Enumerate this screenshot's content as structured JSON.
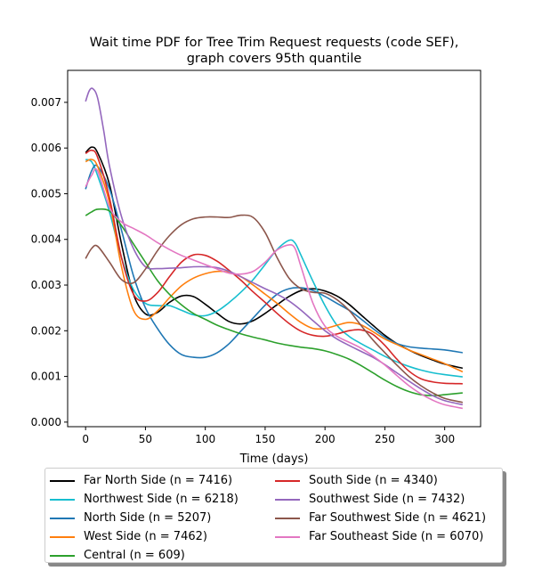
{
  "chart_data": {
    "type": "line",
    "title": "Wait time PDF for Tree Trim Request  requests (code SEF),\ngraph covers 95th quantile",
    "xlabel": "Time (days)",
    "ylabel": "",
    "xlim": [
      -15,
      330
    ],
    "ylim": [
      -0.0001,
      0.0077
    ],
    "xticks": [
      0,
      50,
      100,
      150,
      200,
      250,
      300
    ],
    "yticks": [
      0.0,
      0.001,
      0.002,
      0.003,
      0.004,
      0.005,
      0.006,
      0.007
    ],
    "ytick_labels": [
      "0.000",
      "0.001",
      "0.002",
      "0.003",
      "0.004",
      "0.005",
      "0.006",
      "0.007"
    ],
    "grid": false,
    "legend_position": "below",
    "series": [
      {
        "name": "Far North Side (n = 7416)",
        "color": "#000000",
        "x": [
          0,
          5,
          10,
          20,
          30,
          40,
          50,
          60,
          70,
          80,
          90,
          100,
          110,
          120,
          130,
          140,
          150,
          160,
          170,
          180,
          190,
          200,
          210,
          220,
          230,
          240,
          250,
          260,
          270,
          280,
          290,
          300,
          315
        ],
        "y": [
          0.0059,
          0.00602,
          0.0059,
          0.0052,
          0.0039,
          0.0028,
          0.00237,
          0.0024,
          0.00262,
          0.00276,
          0.00275,
          0.00258,
          0.00238,
          0.0022,
          0.00215,
          0.00222,
          0.00238,
          0.00257,
          0.00275,
          0.00288,
          0.00292,
          0.00287,
          0.00276,
          0.00258,
          0.00235,
          0.00212,
          0.0019,
          0.00172,
          0.00158,
          0.00146,
          0.00136,
          0.00127,
          0.00118
        ]
      },
      {
        "name": "Northwest Side (n = 6218)",
        "color": "#17becf",
        "x": [
          0,
          5,
          10,
          20,
          30,
          40,
          50,
          60,
          70,
          80,
          90,
          100,
          110,
          120,
          130,
          140,
          150,
          160,
          170,
          175,
          180,
          190,
          200,
          210,
          220,
          230,
          240,
          250,
          260,
          270,
          280,
          290,
          300,
          315
        ],
        "y": [
          0.00575,
          0.0057,
          0.0054,
          0.0046,
          0.0036,
          0.0029,
          0.0026,
          0.00255,
          0.00255,
          0.00245,
          0.00235,
          0.00233,
          0.00243,
          0.00262,
          0.00285,
          0.00312,
          0.00345,
          0.00378,
          0.00398,
          0.00392,
          0.00365,
          0.00308,
          0.00255,
          0.00212,
          0.00188,
          0.00172,
          0.00158,
          0.00144,
          0.00132,
          0.00122,
          0.00114,
          0.00108,
          0.00104,
          0.00099
        ]
      },
      {
        "name": "North Side (n = 5207)",
        "color": "#1f77b4",
        "x": [
          0,
          5,
          10,
          20,
          30,
          40,
          50,
          60,
          70,
          80,
          90,
          100,
          110,
          120,
          130,
          140,
          150,
          160,
          170,
          180,
          190,
          200,
          210,
          220,
          230,
          240,
          250,
          260,
          270,
          280,
          290,
          300,
          315
        ],
        "y": [
          0.0051,
          0.0055,
          0.0056,
          0.0051,
          0.0042,
          0.0032,
          0.0025,
          0.00205,
          0.0017,
          0.00148,
          0.00142,
          0.00142,
          0.00152,
          0.00172,
          0.002,
          0.00228,
          0.00256,
          0.0028,
          0.00292,
          0.00294,
          0.00288,
          0.00275,
          0.0026,
          0.00245,
          0.00226,
          0.00205,
          0.00186,
          0.00172,
          0.00165,
          0.00162,
          0.0016,
          0.00158,
          0.00152
        ]
      },
      {
        "name": "West Side (n = 7462)",
        "color": "#ff7f0e",
        "x": [
          0,
          5,
          10,
          20,
          30,
          40,
          50,
          60,
          70,
          80,
          90,
          100,
          110,
          120,
          130,
          140,
          150,
          160,
          170,
          180,
          190,
          200,
          210,
          220,
          230,
          240,
          250,
          260,
          270,
          280,
          290,
          300,
          315
        ],
        "y": [
          0.0057,
          0.00575,
          0.0056,
          0.0048,
          0.0034,
          0.00245,
          0.00225,
          0.00243,
          0.00272,
          0.00298,
          0.00315,
          0.00325,
          0.0033,
          0.00328,
          0.00318,
          0.003,
          0.0028,
          0.0026,
          0.00238,
          0.00218,
          0.00205,
          0.00205,
          0.00212,
          0.00218,
          0.00213,
          0.00198,
          0.00182,
          0.0017,
          0.00158,
          0.00148,
          0.00138,
          0.00128,
          0.0011
        ]
      },
      {
        "name": "Central (n = 609)",
        "color": "#2ca02c",
        "x": [
          0,
          5,
          10,
          20,
          30,
          40,
          50,
          60,
          70,
          80,
          90,
          100,
          110,
          120,
          130,
          140,
          150,
          160,
          170,
          180,
          190,
          200,
          210,
          220,
          230,
          240,
          250,
          260,
          270,
          280,
          290,
          300,
          315
        ],
        "y": [
          0.00452,
          0.0046,
          0.00466,
          0.00462,
          0.0043,
          0.0039,
          0.0035,
          0.0031,
          0.0028,
          0.00257,
          0.00238,
          0.00225,
          0.00212,
          0.00202,
          0.00193,
          0.00186,
          0.0018,
          0.00173,
          0.00168,
          0.00164,
          0.00161,
          0.00156,
          0.00148,
          0.00138,
          0.00124,
          0.00108,
          0.00092,
          0.00078,
          0.00067,
          0.0006,
          0.00058,
          0.0006,
          0.00064
        ]
      },
      {
        "name": "South Side (n = 4340)",
        "color": "#d62728",
        "x": [
          0,
          5,
          10,
          20,
          30,
          40,
          50,
          60,
          70,
          80,
          90,
          100,
          110,
          120,
          130,
          140,
          150,
          160,
          170,
          180,
          190,
          200,
          210,
          220,
          230,
          240,
          250,
          260,
          270,
          280,
          290,
          300,
          315
        ],
        "y": [
          0.00588,
          0.00595,
          0.0058,
          0.0049,
          0.0036,
          0.0028,
          0.00265,
          0.00283,
          0.00318,
          0.0035,
          0.00366,
          0.00365,
          0.00352,
          0.00332,
          0.0031,
          0.00285,
          0.00262,
          0.00238,
          0.00216,
          0.00199,
          0.0019,
          0.00188,
          0.00193,
          0.002,
          0.00202,
          0.00192,
          0.00168,
          0.00138,
          0.00112,
          0.00095,
          0.00088,
          0.00085,
          0.00084
        ]
      },
      {
        "name": "Southwest Side (n = 7432)",
        "color": "#9467bd",
        "x": [
          0,
          3,
          6,
          10,
          15,
          20,
          30,
          40,
          50,
          60,
          70,
          80,
          90,
          100,
          110,
          120,
          130,
          140,
          150,
          160,
          170,
          180,
          190,
          200,
          210,
          220,
          230,
          240,
          250,
          260,
          270,
          280,
          290,
          300,
          315
        ],
        "y": [
          0.00702,
          0.00725,
          0.0073,
          0.0071,
          0.0064,
          0.0056,
          0.0045,
          0.0038,
          0.0034,
          0.00336,
          0.00337,
          0.00338,
          0.0034,
          0.0034,
          0.00338,
          0.0033,
          0.00318,
          0.00305,
          0.00292,
          0.0028,
          0.00265,
          0.00245,
          0.00222,
          0.002,
          0.00182,
          0.00168,
          0.00155,
          0.00142,
          0.00126,
          0.00108,
          0.0009,
          0.00073,
          0.00058,
          0.00047,
          0.00038
        ]
      },
      {
        "name": "Far Southwest Side (n = 4621)",
        "color": "#8c564b",
        "x": [
          0,
          5,
          10,
          20,
          30,
          40,
          50,
          60,
          70,
          80,
          90,
          100,
          110,
          120,
          130,
          140,
          150,
          160,
          170,
          180,
          190,
          200,
          210,
          220,
          230,
          240,
          250,
          260,
          270,
          280,
          290,
          300,
          315
        ],
        "y": [
          0.00358,
          0.0038,
          0.00385,
          0.0035,
          0.00312,
          0.00305,
          0.00335,
          0.00375,
          0.00408,
          0.00432,
          0.00445,
          0.00449,
          0.00449,
          0.00448,
          0.00453,
          0.00448,
          0.00415,
          0.0036,
          0.00315,
          0.00292,
          0.00284,
          0.00282,
          0.00268,
          0.00245,
          0.00212,
          0.0018,
          0.00152,
          0.00125,
          0.001,
          0.0008,
          0.00064,
          0.00052,
          0.00043
        ]
      },
      {
        "name": "Far Southeast Side (n = 6070)",
        "color": "#e377c2",
        "x": [
          0,
          5,
          10,
          20,
          30,
          40,
          50,
          60,
          70,
          80,
          90,
          100,
          110,
          120,
          130,
          140,
          150,
          160,
          170,
          175,
          180,
          190,
          200,
          210,
          220,
          230,
          240,
          250,
          260,
          270,
          280,
          290,
          300,
          315
        ],
        "y": [
          0.00515,
          0.0054,
          0.0055,
          0.0047,
          0.00438,
          0.00424,
          0.0041,
          0.00393,
          0.00378,
          0.00365,
          0.00355,
          0.00345,
          0.00335,
          0.00326,
          0.00324,
          0.0033,
          0.0035,
          0.00377,
          0.00388,
          0.0038,
          0.0034,
          0.0026,
          0.0021,
          0.00188,
          0.00175,
          0.00162,
          0.00145,
          0.00125,
          0.00102,
          0.0008,
          0.00062,
          0.00048,
          0.00038,
          0.0003
        ]
      }
    ]
  }
}
